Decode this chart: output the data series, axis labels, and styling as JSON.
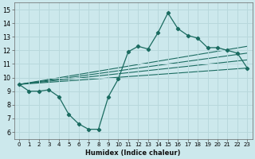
{
  "xlabel": "Humidex (Indice chaleur)",
  "ylabel": "",
  "xlim": [
    -0.5,
    23.5
  ],
  "ylim": [
    5.5,
    15.5
  ],
  "xticks": [
    0,
    1,
    2,
    3,
    4,
    5,
    6,
    7,
    8,
    9,
    10,
    11,
    12,
    13,
    14,
    15,
    16,
    17,
    18,
    19,
    20,
    21,
    22,
    23
  ],
  "yticks": [
    6,
    7,
    8,
    9,
    10,
    11,
    12,
    13,
    14,
    15
  ],
  "bg_color": "#cce8ec",
  "grid_color": "#b8d8dc",
  "line_color": "#1a6b60",
  "main_line": {
    "x": [
      0,
      1,
      2,
      3,
      4,
      5,
      6,
      7,
      8,
      9,
      10,
      11,
      12,
      13,
      14,
      15,
      16,
      17,
      18,
      19,
      20,
      21,
      22,
      23
    ],
    "y": [
      9.5,
      9.0,
      9.0,
      9.1,
      8.6,
      7.3,
      6.6,
      6.2,
      6.2,
      8.6,
      9.9,
      11.9,
      12.3,
      12.1,
      13.3,
      14.75,
      13.6,
      13.1,
      12.9,
      12.2,
      12.2,
      12.0,
      11.8,
      10.7
    ]
  },
  "straight_lines": [
    {
      "x": [
        0,
        23
      ],
      "y": [
        9.5,
        10.7
      ]
    },
    {
      "x": [
        0,
        23
      ],
      "y": [
        9.5,
        11.3
      ]
    },
    {
      "x": [
        0,
        23
      ],
      "y": [
        9.5,
        11.8
      ]
    },
    {
      "x": [
        0,
        23
      ],
      "y": [
        9.5,
        12.3
      ]
    }
  ]
}
